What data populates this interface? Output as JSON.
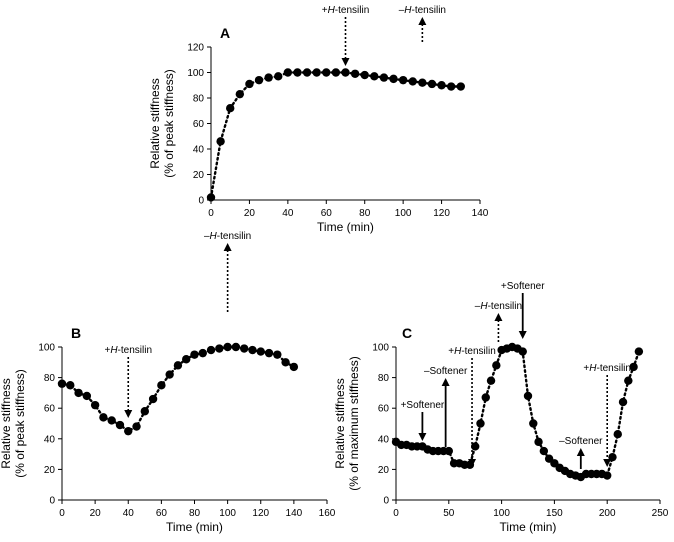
{
  "chart_data": [
    {
      "panel": "A",
      "type": "scatter",
      "xlabel": "Time (min)",
      "ylabel": [
        "Relative stiffness",
        "(% of peak stiffness)"
      ],
      "xlim": [
        0,
        140
      ],
      "ylim": [
        0,
        120
      ],
      "xticks": [
        0,
        20,
        40,
        60,
        80,
        100,
        120,
        140
      ],
      "yticks": [
        0,
        20,
        40,
        60,
        80,
        100,
        120
      ],
      "grid": false,
      "points": [
        [
          0,
          2
        ],
        [
          5,
          46
        ],
        [
          10,
          72
        ],
        [
          15,
          83
        ],
        [
          20,
          91
        ],
        [
          25,
          94
        ],
        [
          30,
          96
        ],
        [
          35,
          97
        ],
        [
          40,
          100
        ],
        [
          45,
          100
        ],
        [
          50,
          100
        ],
        [
          55,
          100
        ],
        [
          60,
          100
        ],
        [
          65,
          100
        ],
        [
          70,
          100
        ],
        [
          75,
          99
        ],
        [
          80,
          98
        ],
        [
          85,
          97
        ],
        [
          90,
          96
        ],
        [
          95,
          95
        ],
        [
          100,
          94
        ],
        [
          105,
          93
        ],
        [
          110,
          92
        ],
        [
          115,
          91
        ],
        [
          120,
          90
        ],
        [
          125,
          89
        ],
        [
          130,
          89
        ]
      ],
      "annotations": [
        {
          "parts": [
            "+",
            "H",
            "-tensilin"
          ],
          "x": 70,
          "arrow": "down",
          "style": "dotted"
        },
        {
          "parts": [
            "–",
            "H",
            "-tensilin"
          ],
          "x": 110,
          "arrow": "up",
          "style": "dotted"
        }
      ]
    },
    {
      "panel": "B",
      "type": "scatter",
      "xlabel": "Time (min)",
      "ylabel": [
        "Relative stiffness",
        "(% of peak stiffness)"
      ],
      "xlim": [
        0,
        160
      ],
      "ylim": [
        0,
        100
      ],
      "xticks": [
        0,
        20,
        40,
        60,
        80,
        100,
        120,
        140,
        160
      ],
      "yticks": [
        0,
        20,
        40,
        60,
        80,
        100
      ],
      "grid": false,
      "points": [
        [
          0,
          76
        ],
        [
          5,
          75
        ],
        [
          10,
          70
        ],
        [
          15,
          68
        ],
        [
          20,
          62
        ],
        [
          25,
          54
        ],
        [
          30,
          52
        ],
        [
          35,
          49
        ],
        [
          40,
          45
        ],
        [
          45,
          48
        ],
        [
          50,
          58
        ],
        [
          55,
          66
        ],
        [
          60,
          75
        ],
        [
          65,
          82
        ],
        [
          70,
          88
        ],
        [
          75,
          92
        ],
        [
          80,
          95
        ],
        [
          85,
          96
        ],
        [
          90,
          98
        ],
        [
          95,
          99
        ],
        [
          100,
          100
        ],
        [
          105,
          100
        ],
        [
          110,
          99
        ],
        [
          115,
          98
        ],
        [
          120,
          97
        ],
        [
          125,
          96
        ],
        [
          130,
          95
        ],
        [
          135,
          90
        ],
        [
          140,
          87
        ]
      ],
      "annotations": [
        {
          "parts": [
            "+",
            "H",
            "-tensilin"
          ],
          "x": 40,
          "arrow": "down",
          "style": "dotted"
        },
        {
          "parts": [
            "–",
            "H",
            "-tensilin"
          ],
          "x": 100,
          "arrow": "up",
          "style": "dotted"
        }
      ]
    },
    {
      "panel": "C",
      "type": "scatter",
      "xlabel": "Time (min)",
      "ylabel": [
        "Relative stiffness",
        "(% of maximum stiffness)"
      ],
      "xlim": [
        0,
        250
      ],
      "ylim": [
        0,
        100
      ],
      "xticks": [
        0,
        50,
        100,
        150,
        200,
        250
      ],
      "yticks": [
        0,
        20,
        40,
        60,
        80,
        100
      ],
      "grid": false,
      "points": [
        [
          0,
          38
        ],
        [
          5,
          36
        ],
        [
          10,
          36
        ],
        [
          15,
          35
        ],
        [
          20,
          35
        ],
        [
          25,
          35
        ],
        [
          30,
          33
        ],
        [
          35,
          32
        ],
        [
          40,
          32
        ],
        [
          45,
          32
        ],
        [
          50,
          32
        ],
        [
          55,
          24
        ],
        [
          60,
          24
        ],
        [
          65,
          23
        ],
        [
          70,
          23
        ],
        [
          75,
          35
        ],
        [
          80,
          50
        ],
        [
          85,
          67
        ],
        [
          90,
          78
        ],
        [
          95,
          88
        ],
        [
          100,
          98
        ],
        [
          105,
          99
        ],
        [
          110,
          100
        ],
        [
          115,
          99
        ],
        [
          120,
          97
        ],
        [
          125,
          68
        ],
        [
          130,
          50
        ],
        [
          135,
          38
        ],
        [
          140,
          32
        ],
        [
          145,
          27
        ],
        [
          150,
          24
        ],
        [
          155,
          21
        ],
        [
          160,
          19
        ],
        [
          165,
          17
        ],
        [
          170,
          16
        ],
        [
          175,
          15
        ],
        [
          180,
          17
        ],
        [
          185,
          17
        ],
        [
          190,
          17
        ],
        [
          195,
          17
        ],
        [
          200,
          16
        ],
        [
          205,
          28
        ],
        [
          210,
          43
        ],
        [
          215,
          64
        ],
        [
          220,
          78
        ],
        [
          225,
          87
        ],
        [
          230,
          97
        ]
      ],
      "annotations": [
        {
          "parts": [
            "+Softener"
          ],
          "x": 25,
          "arrow": "down",
          "style": "solid"
        },
        {
          "parts": [
            "–Softener"
          ],
          "x": 47,
          "arrow": "up",
          "style": "solid"
        },
        {
          "parts": [
            "+",
            "H",
            "-tensilin"
          ],
          "x": 72,
          "arrow": "down",
          "style": "dotted"
        },
        {
          "parts": [
            "–",
            "H",
            "-tensilin"
          ],
          "x": 97,
          "arrow": "up",
          "style": "dotted"
        },
        {
          "parts": [
            "+Softener"
          ],
          "x": 120,
          "arrow": "down",
          "style": "solid"
        },
        {
          "parts": [
            "–Softener"
          ],
          "x": 175,
          "arrow": "up",
          "style": "solid"
        },
        {
          "parts": [
            "+",
            "H",
            "-tensilin"
          ],
          "x": 200,
          "arrow": "down",
          "style": "dotted"
        }
      ]
    }
  ]
}
